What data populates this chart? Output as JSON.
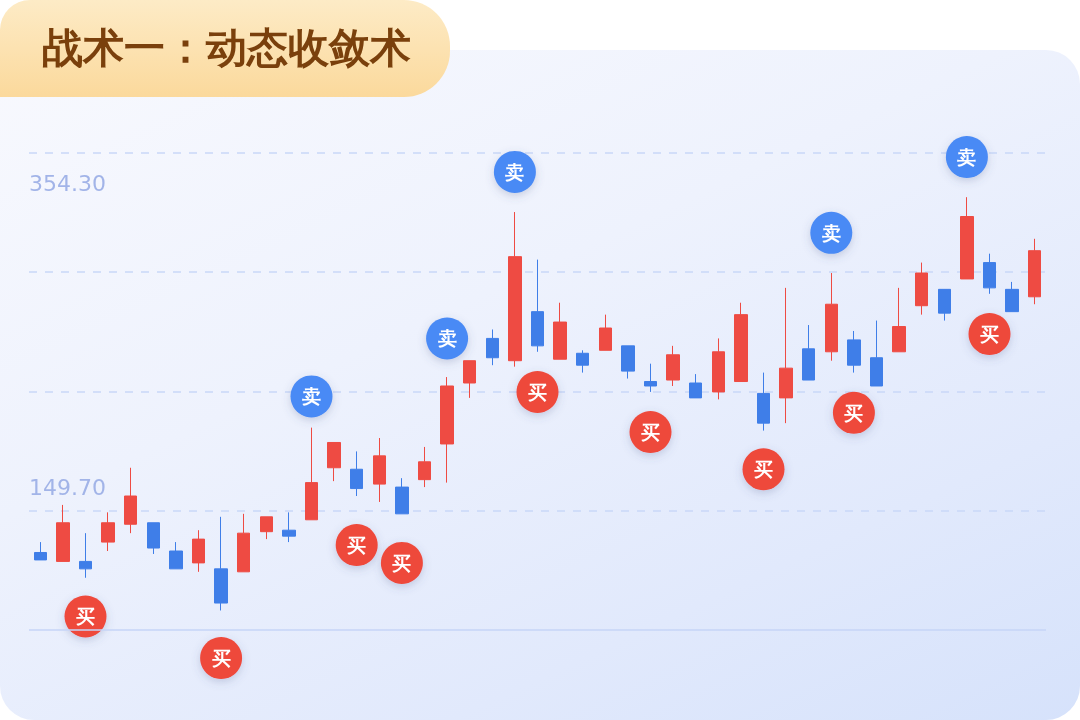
{
  "chart_data": {
    "type": "candlestick",
    "title": "战术一：动态收敛术",
    "categories": [
      null,
      null,
      null,
      null,
      null,
      null,
      null,
      null,
      null,
      null,
      null,
      null,
      null,
      null,
      null,
      null,
      null,
      null,
      null,
      null,
      null,
      null,
      null,
      null,
      null,
      null,
      null,
      null,
      null,
      null,
      null,
      null,
      null,
      null,
      null,
      null,
      null,
      null,
      null,
      null,
      null,
      null,
      null,
      null,
      null
    ],
    "ohlc": [
      [
        106,
        113,
        101,
        101
      ],
      [
        100,
        138,
        100,
        126
      ],
      [
        100,
        119,
        89,
        95
      ],
      [
        113,
        133,
        107,
        126
      ],
      [
        125,
        163,
        119,
        144
      ],
      [
        126,
        126,
        105,
        109
      ],
      [
        107,
        113,
        95,
        95
      ],
      [
        99,
        121,
        93,
        115
      ],
      [
        95,
        130,
        67,
        72
      ],
      [
        93,
        132,
        93,
        119
      ],
      [
        120,
        130,
        115,
        130
      ],
      [
        121,
        133,
        113,
        117
      ],
      [
        128,
        190,
        128,
        153
      ],
      [
        163,
        180,
        154,
        180
      ],
      [
        162,
        174,
        144,
        149
      ],
      [
        152,
        183,
        140,
        171
      ],
      [
        150,
        156,
        132,
        132
      ],
      [
        155,
        177,
        150,
        167
      ],
      [
        179,
        224,
        153,
        218
      ],
      [
        220,
        235,
        210,
        235
      ],
      [
        250,
        256,
        232,
        237
      ],
      [
        235,
        335,
        231,
        305
      ],
      [
        268,
        303,
        241,
        245
      ],
      [
        236,
        274,
        236,
        261
      ],
      [
        240,
        242,
        227,
        232
      ],
      [
        242,
        266,
        242,
        257
      ],
      [
        245,
        245,
        223,
        228
      ],
      [
        221,
        233,
        214,
        218
      ],
      [
        222,
        245,
        218,
        239
      ],
      [
        220,
        226,
        210,
        210
      ],
      [
        214,
        250,
        209,
        241
      ],
      [
        221,
        274,
        221,
        266
      ],
      [
        213,
        227,
        188,
        193
      ],
      [
        210,
        284,
        193,
        230
      ],
      [
        243,
        259,
        222,
        222
      ],
      [
        241,
        294,
        235,
        273
      ],
      [
        249,
        255,
        227,
        232
      ],
      [
        237,
        262,
        218,
        218
      ],
      [
        241,
        284,
        241,
        258
      ],
      [
        272,
        301,
        266,
        294
      ],
      [
        283,
        283,
        262,
        267
      ],
      [
        290,
        345,
        290,
        332
      ],
      [
        301,
        307,
        280,
        284
      ],
      [
        283,
        288,
        268,
        268
      ],
      [
        278,
        317,
        273,
        309
      ]
    ],
    "colors": [
      "#3f7ee8",
      "#ee4b43",
      "#3f7ee8",
      "#ee4b43",
      "#ee4b43",
      "#3f7ee8",
      "#3f7ee8",
      "#ee4b43",
      "#3f7ee8",
      "#ee4b43",
      "#ee4b43",
      "#3f7ee8",
      "#ee4b43",
      "#ee4b43",
      "#3f7ee8",
      "#ee4b43",
      "#3f7ee8",
      "#ee4b43",
      "#ee4b43",
      "#ee4b43",
      "#3f7ee8",
      "#ee4b43",
      "#3f7ee8",
      "#ee4b43",
      "#3f7ee8",
      "#ee4b43",
      "#3f7ee8",
      "#3f7ee8",
      "#ee4b43",
      "#3f7ee8",
      "#ee4b43",
      "#ee4b43",
      "#3f7ee8",
      "#ee4b43",
      "#3f7ee8",
      "#ee4b43",
      "#3f7ee8",
      "#3f7ee8",
      "#ee4b43",
      "#ee4b43",
      "#3f7ee8",
      "#ee4b43",
      "#3f7ee8",
      "#3f7ee8",
      "#ee4b43"
    ],
    "ylim": [
      -6,
      444
    ],
    "yticks": [
      {
        "value": 134,
        "label": null
      },
      {
        "value": 149.7,
        "label": "149.70"
      },
      {
        "value": 214,
        "label": null
      },
      {
        "value": 295,
        "label": null
      },
      {
        "value": 354.3,
        "label": "354.30"
      },
      {
        "value": 375,
        "label": null
      }
    ],
    "grid": "y",
    "tick_labels": "y",
    "ref_lines": [
      {
        "axis": "y",
        "value": 54,
        "color": "#c6d5f7",
        "line_style": "solid"
      }
    ],
    "series": [
      {
        "type": "scatter",
        "color": "#4a8af5",
        "marker": "circle",
        "values": [
          null,
          null,
          null,
          null,
          null,
          null,
          null,
          null,
          null,
          null,
          null,
          null,
          211,
          null,
          null,
          null,
          null,
          null,
          250,
          null,
          null,
          362,
          null,
          null,
          null,
          null,
          null,
          null,
          null,
          null,
          null,
          null,
          null,
          null,
          null,
          321,
          null,
          null,
          null,
          null,
          null,
          372,
          null,
          null,
          null
        ],
        "value_labels": [
          null,
          null,
          null,
          null,
          null,
          null,
          null,
          null,
          null,
          null,
          null,
          null,
          "卖",
          null,
          null,
          null,
          null,
          null,
          "卖",
          null,
          null,
          "卖",
          null,
          null,
          null,
          null,
          null,
          null,
          null,
          null,
          null,
          null,
          null,
          null,
          null,
          "卖",
          null,
          null,
          null,
          null,
          null,
          "卖",
          null,
          null,
          null
        ]
      },
      {
        "type": "scatter",
        "color": "#ee4a3b",
        "marker": "circle",
        "values": [
          null,
          null,
          63,
          null,
          null,
          null,
          null,
          null,
          35,
          null,
          null,
          null,
          null,
          null,
          111,
          null,
          99,
          null,
          null,
          null,
          null,
          null,
          214,
          null,
          null,
          null,
          null,
          187,
          null,
          null,
          null,
          null,
          162,
          null,
          null,
          null,
          200,
          null,
          null,
          null,
          null,
          null,
          253,
          null,
          null
        ],
        "value_labels": [
          null,
          null,
          "买",
          null,
          null,
          null,
          null,
          null,
          "买",
          null,
          null,
          null,
          null,
          null,
          "买",
          null,
          "买",
          null,
          null,
          null,
          null,
          null,
          "买",
          null,
          null,
          null,
          null,
          "买",
          null,
          null,
          null,
          null,
          "买",
          null,
          null,
          null,
          "买",
          null,
          null,
          null,
          null,
          null,
          "买",
          null,
          null
        ]
      }
    ]
  }
}
